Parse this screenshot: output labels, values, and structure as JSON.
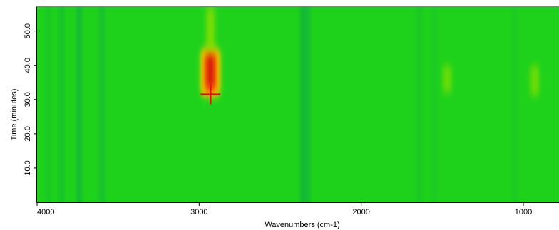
{
  "chart_data": {
    "type": "heatmap",
    "xlabel": "Wavenumbers (cm-1)",
    "ylabel": "Time (minutes)",
    "xlim": [
      4000,
      780
    ],
    "ylim": [
      0,
      57
    ],
    "x_reversed": true,
    "x_ticks": [
      4000,
      3000,
      2000,
      1000
    ],
    "x_tick_labels": [
      "4000",
      "3000",
      "2000",
      "1000"
    ],
    "y_ticks": [
      10,
      20,
      30,
      40,
      50
    ],
    "y_tick_labels": [
      "10.0",
      "20.0",
      "30.0",
      "40.0",
      "50.0"
    ],
    "grid": false,
    "colorscale": [
      "#0ca84a",
      "#1fd21a",
      "#8ee000",
      "#ffd000",
      "#ff7000",
      "#d01010"
    ],
    "background_color": "#1ed21b",
    "hotspots": [
      {
        "x": 2930,
        "y_min": 32,
        "y_max": 44,
        "intensity": 1.0
      },
      {
        "x": 2930,
        "y_min": 44,
        "y_max": 57,
        "intensity": 0.35
      },
      {
        "x": 1470,
        "y_min": 32,
        "y_max": 40,
        "intensity": 0.3
      },
      {
        "x": 930,
        "y_min": 31,
        "y_max": 40,
        "intensity": 0.3
      }
    ],
    "bands": [
      {
        "x": 3930,
        "intensity": -0.2
      },
      {
        "x": 3850,
        "intensity": -0.3
      },
      {
        "x": 3740,
        "intensity": -0.45
      },
      {
        "x": 3600,
        "intensity": -0.35
      },
      {
        "x": 2360,
        "intensity": -0.5
      },
      {
        "x": 2330,
        "intensity": -0.4
      },
      {
        "x": 1640,
        "intensity": -0.2
      },
      {
        "x": 1550,
        "intensity": -0.15
      },
      {
        "x": 1050,
        "intensity": -0.15
      }
    ],
    "cursor": {
      "x": 2930,
      "y": 31.5
    }
  }
}
